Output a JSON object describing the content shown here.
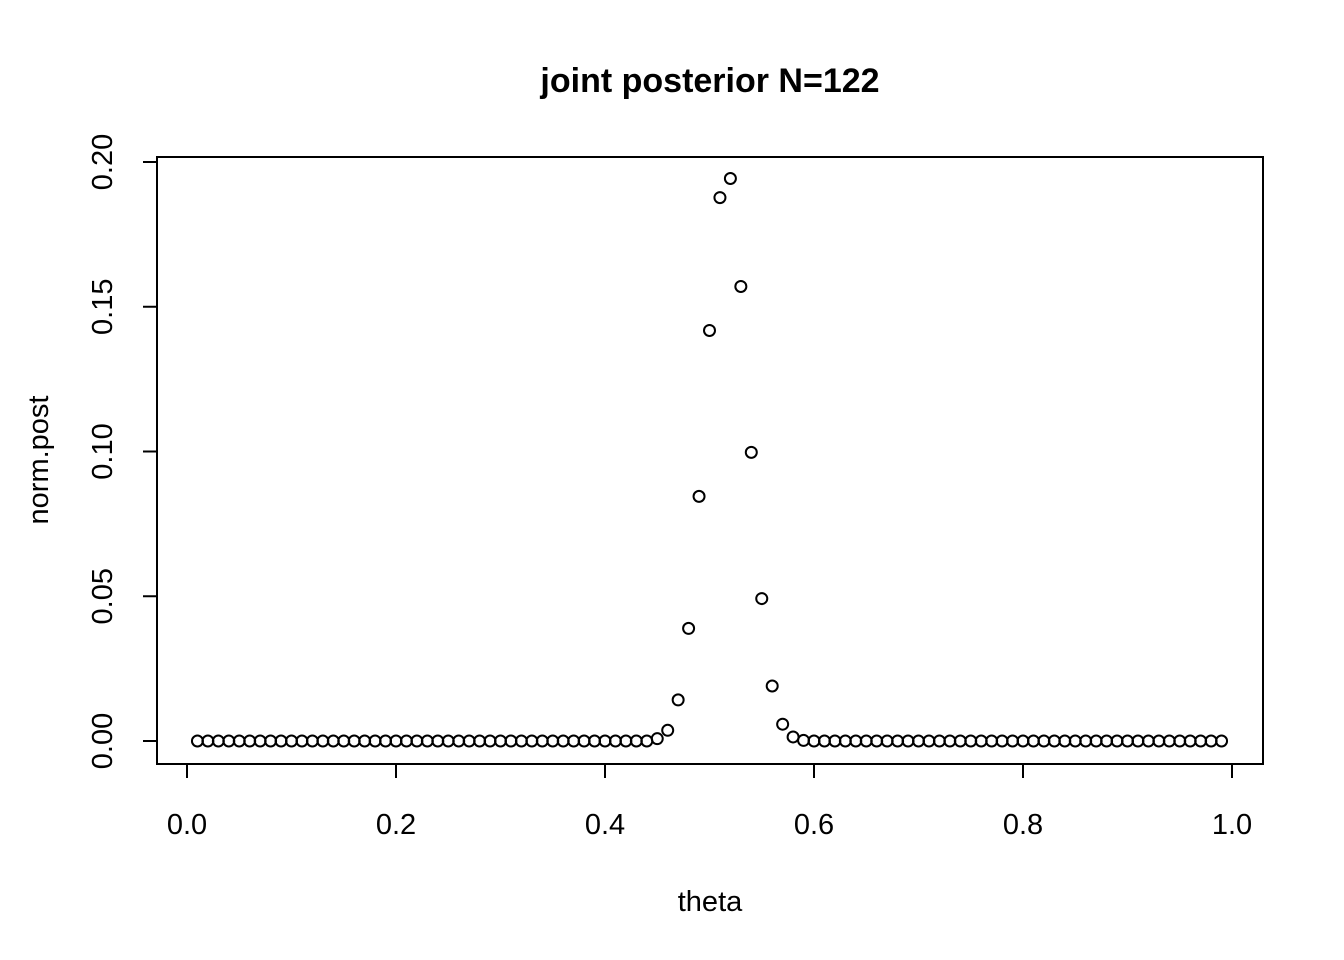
{
  "chart_data": {
    "type": "scatter",
    "title": "joint posterior N=122",
    "xlabel": "theta",
    "ylabel": "norm.post",
    "x_ticks": [
      "0.0",
      "0.2",
      "0.4",
      "0.6",
      "0.8",
      "1.0"
    ],
    "y_ticks": [
      "0.00",
      "0.05",
      "0.10",
      "0.15",
      "0.20"
    ],
    "xlim": [
      0.0,
      1.0
    ],
    "ylim": [
      0.0,
      0.2
    ],
    "grid": false,
    "marker": "open-circle",
    "x": [
      0.01,
      0.02,
      0.03,
      0.04,
      0.05,
      0.06,
      0.07,
      0.08,
      0.09,
      0.1,
      0.11,
      0.12,
      0.13,
      0.14,
      0.15,
      0.16,
      0.17,
      0.18,
      0.19,
      0.2,
      0.21,
      0.22,
      0.23,
      0.24,
      0.25,
      0.26,
      0.27,
      0.28,
      0.29,
      0.3,
      0.31,
      0.32,
      0.33,
      0.34,
      0.35,
      0.36,
      0.37,
      0.38,
      0.39,
      0.4,
      0.41,
      0.42,
      0.43,
      0.44,
      0.45,
      0.46,
      0.47,
      0.48,
      0.49,
      0.5,
      0.51,
      0.52,
      0.53,
      0.54,
      0.55,
      0.56,
      0.57,
      0.58,
      0.59,
      0.6,
      0.61,
      0.62,
      0.63,
      0.64,
      0.65,
      0.66,
      0.67,
      0.68,
      0.69,
      0.7,
      0.71,
      0.72,
      0.73,
      0.74,
      0.75,
      0.76,
      0.77,
      0.78,
      0.79,
      0.8,
      0.81,
      0.82,
      0.83,
      0.84,
      0.85,
      0.86,
      0.87,
      0.88,
      0.89,
      0.9,
      0.91,
      0.92,
      0.93,
      0.94,
      0.95,
      0.96,
      0.97,
      0.98,
      0.99
    ],
    "y": [
      0,
      0,
      0,
      0,
      0,
      0,
      0,
      0,
      0,
      0,
      0,
      0,
      0,
      0,
      0,
      0,
      0,
      0,
      0,
      0,
      0,
      0,
      0,
      0,
      0,
      0,
      0,
      0,
      0,
      0,
      0,
      0,
      0,
      0,
      0,
      0,
      0,
      0,
      0,
      0,
      0,
      0,
      0,
      0,
      0.0008,
      0.0037,
      0.0142,
      0.0389,
      0.0845,
      0.1418,
      0.1877,
      0.1943,
      0.157,
      0.0997,
      0.0492,
      0.019,
      0.0058,
      0.0014,
      0.0002,
      0,
      0,
      0,
      0,
      0,
      0,
      0,
      0,
      0,
      0,
      0,
      0,
      0,
      0,
      0,
      0,
      0,
      0,
      0,
      0,
      0,
      0,
      0,
      0,
      0,
      0,
      0,
      0,
      0,
      0,
      0,
      0,
      0,
      0,
      0,
      0,
      0,
      0,
      0,
      0
    ]
  }
}
